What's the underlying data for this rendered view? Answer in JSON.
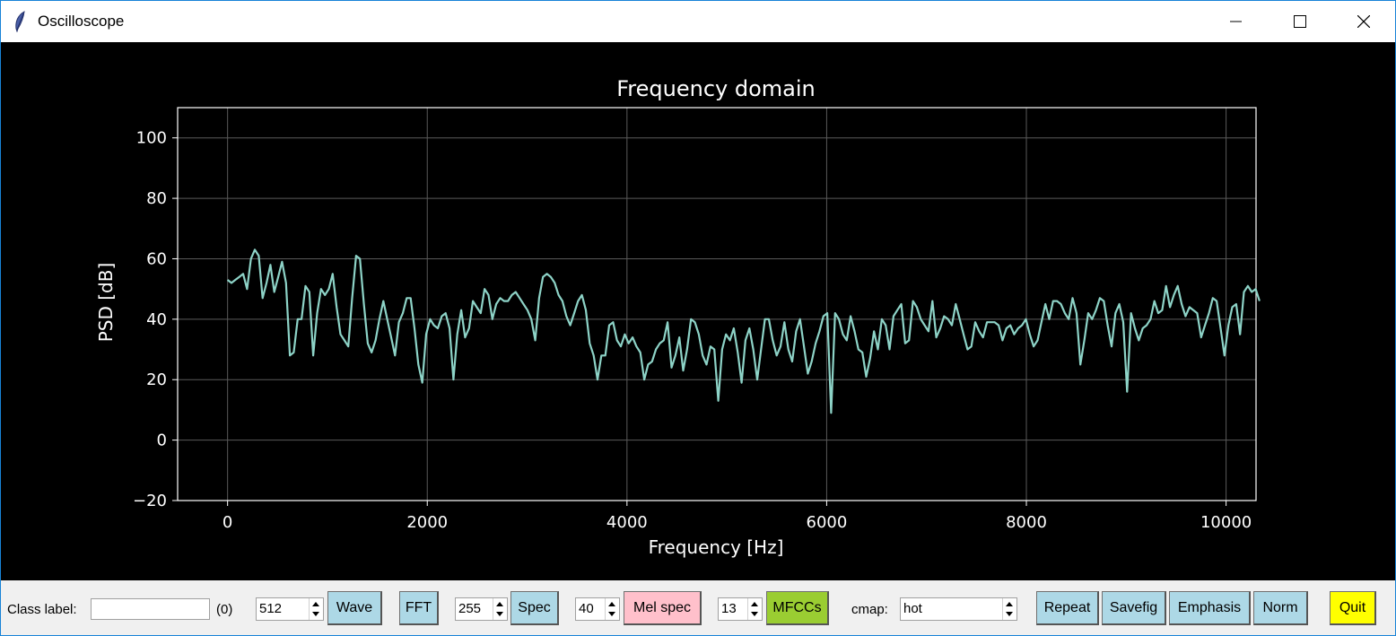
{
  "window": {
    "title": "Oscilloscope",
    "controls": {
      "minimize": "minimize-icon",
      "maximize": "maximize-icon",
      "close": "close-icon"
    }
  },
  "chart_data": {
    "type": "line",
    "title": "Frequency domain",
    "xlabel": "Frequency [Hz]",
    "ylabel": "PSD [dB]",
    "xlim": [
      -500,
      10300
    ],
    "ylim": [
      -20,
      110
    ],
    "xticks": [
      "0",
      "2000",
      "4000",
      "6000",
      "8000",
      "10000"
    ],
    "yticks": [
      "−20",
      "0",
      "20",
      "40",
      "60",
      "80",
      "100"
    ],
    "xtick_values": [
      0,
      2000,
      4000,
      6000,
      8000,
      10000
    ],
    "ytick_values": [
      -20,
      0,
      20,
      40,
      60,
      80,
      100
    ],
    "grid": true,
    "colors": {
      "background": "#000000",
      "line": "#8dd3c7",
      "axes": "#ffffff",
      "grid": "#5a5a5a"
    },
    "series": [
      {
        "x_start": 0,
        "x_step": 39,
        "values": [
          53,
          52,
          53,
          54,
          55,
          50,
          60,
          63,
          61,
          47,
          52,
          58,
          49,
          54,
          59,
          52,
          28,
          29,
          40,
          40,
          51,
          49,
          28,
          42,
          50,
          48,
          50,
          55,
          44,
          35,
          33,
          31,
          47,
          61,
          60,
          45,
          32,
          29,
          33,
          40,
          46,
          40,
          34,
          28,
          39,
          42,
          47,
          47,
          37,
          25,
          19,
          35,
          40,
          38,
          37,
          41,
          42,
          37,
          20,
          35,
          43,
          34,
          37,
          46,
          44,
          42,
          50,
          48,
          40,
          45,
          47,
          46,
          46,
          48,
          49,
          47,
          45,
          43,
          40,
          33,
          47,
          54,
          55,
          54,
          52,
          48,
          46,
          41,
          38,
          42,
          46,
          48,
          43,
          32,
          28,
          20,
          28,
          28,
          38,
          39,
          33,
          31,
          35,
          32,
          34,
          31,
          29,
          20,
          25,
          26,
          30,
          32,
          33,
          39,
          24,
          28,
          34,
          23,
          30,
          40,
          39,
          35,
          28,
          25,
          31,
          30,
          13,
          30,
          35,
          33,
          37,
          29,
          19,
          33,
          37,
          30,
          20,
          30,
          40,
          40,
          33,
          28,
          31,
          39,
          30,
          26,
          36,
          40,
          31,
          22,
          26,
          32,
          36,
          41,
          42,
          9,
          42,
          40,
          35,
          33,
          41,
          36,
          30,
          29,
          21,
          27,
          36,
          30,
          40,
          38,
          30,
          41,
          43,
          45,
          32,
          33,
          46,
          44,
          40,
          38,
          36,
          46,
          34,
          37,
          41,
          40,
          38,
          45,
          40,
          35,
          30,
          31,
          39,
          36,
          34,
          39,
          39,
          39,
          38,
          33,
          37,
          38,
          35,
          37,
          38,
          40,
          35,
          31,
          33,
          39,
          45,
          40,
          46,
          46,
          45,
          42,
          40,
          47,
          42,
          25,
          33,
          42,
          40,
          43,
          47,
          46,
          38,
          31,
          42,
          45,
          39,
          16,
          42,
          37,
          33,
          37,
          38,
          40,
          46,
          42,
          43,
          51,
          44,
          48,
          51,
          45,
          41,
          44,
          43,
          42,
          34,
          38,
          42,
          47,
          46,
          37,
          28,
          38,
          44,
          45,
          35,
          49,
          51,
          49,
          50,
          46
        ]
      }
    ]
  },
  "toolbar": {
    "class_label": "Class label:",
    "class_value": "",
    "class_count": "(0)",
    "spin_wave": "512",
    "wave_btn": "Wave",
    "fft_btn": "FFT",
    "spin_spec": "255",
    "spec_btn": "Spec",
    "spin_mel": "40",
    "mel_btn": "Mel spec",
    "spin_mfcc": "13",
    "mfcc_btn": "MFCCs",
    "cmap_label": "cmap:",
    "cmap_value": "hot",
    "repeat_btn": "Repeat",
    "savefig_btn": "Savefig",
    "emphasis_btn": "Emphasis",
    "norm_btn": "Norm",
    "quit_btn": "Quit"
  },
  "colors": {
    "button_blue": "#add8e6",
    "button_pink": "#ffc0cb",
    "button_green": "#9acd32",
    "button_yellow": "#ffff00"
  }
}
